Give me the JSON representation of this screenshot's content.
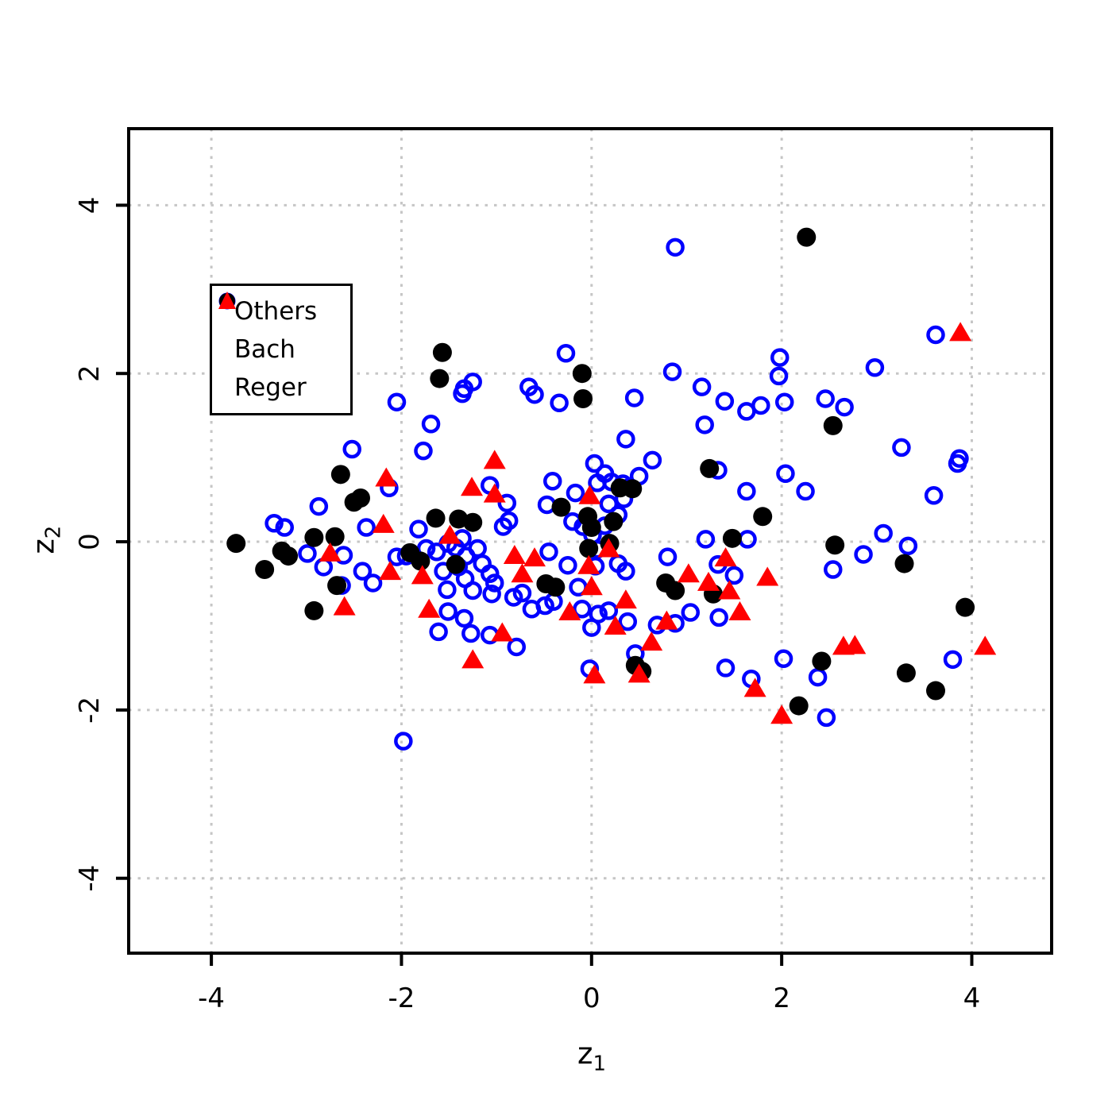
{
  "chart_data": {
    "type": "scatter",
    "title": "",
    "xlabel": "z1",
    "ylabel": "z2",
    "xlabel_base": "z",
    "xlabel_sub": "1",
    "ylabel_base": "z",
    "ylabel_sub": "2",
    "xlim": [
      -4.87,
      4.84
    ],
    "ylim": [
      -4.89,
      4.91
    ],
    "x_ticks": [
      "-4",
      "-2",
      "0",
      "2",
      "4"
    ],
    "y_ticks": [
      "-4",
      "-2",
      "0",
      "2",
      "4"
    ],
    "x_tick_values": [
      -4,
      -2,
      0,
      2,
      4
    ],
    "y_tick_values": [
      -4,
      -2,
      0,
      2,
      4
    ],
    "grid": true,
    "grid_color": "#c6c6c6",
    "legend": {
      "position": "top-left",
      "entries": [
        {
          "label": "Others",
          "marker": "open-circle",
          "color": "#0000ff"
        },
        {
          "label": "Bach",
          "marker": "filled-circle",
          "color": "#000000"
        },
        {
          "label": "Reger",
          "marker": "filled-triangle",
          "color": "#ff0000"
        }
      ]
    },
    "series": [
      {
        "name": "Others",
        "marker": "open-circle",
        "color": "#0000ff",
        "points": [
          [
            0.88,
            3.5
          ],
          [
            3.62,
            2.46
          ],
          [
            -0.27,
            2.24
          ],
          [
            2.98,
            2.07
          ],
          [
            1.98,
            2.19
          ],
          [
            1.97,
            1.97
          ],
          [
            0.85,
            2.02
          ],
          [
            -2.05,
            1.66
          ],
          [
            -1.34,
            1.82
          ],
          [
            -1.25,
            1.9
          ],
          [
            -1.36,
            1.76
          ],
          [
            -0.66,
            1.84
          ],
          [
            -0.6,
            1.75
          ],
          [
            -0.34,
            1.65
          ],
          [
            0.45,
            1.71
          ],
          [
            1.16,
            1.84
          ],
          [
            1.4,
            1.67
          ],
          [
            1.63,
            1.55
          ],
          [
            1.78,
            1.62
          ],
          [
            2.03,
            1.66
          ],
          [
            2.46,
            1.7
          ],
          [
            2.66,
            1.6
          ],
          [
            -1.69,
            1.4
          ],
          [
            -1.77,
            1.08
          ],
          [
            -2.52,
            1.1
          ],
          [
            1.19,
            1.39
          ],
          [
            3.26,
            1.12
          ],
          [
            3.87,
            0.99
          ],
          [
            0.64,
            0.97
          ],
          [
            0.36,
            1.22
          ],
          [
            0.03,
            0.93
          ],
          [
            0.14,
            0.81
          ],
          [
            1.33,
            0.85
          ],
          [
            1.63,
            0.6
          ],
          [
            2.04,
            0.81
          ],
          [
            2.25,
            0.6
          ],
          [
            3.6,
            0.55
          ],
          [
            3.85,
            0.93
          ],
          [
            0.06,
            0.7
          ],
          [
            0.21,
            0.71
          ],
          [
            0.33,
            0.69
          ],
          [
            0.4,
            0.65
          ],
          [
            0.5,
            0.78
          ],
          [
            -0.17,
            0.58
          ],
          [
            -0.41,
            0.72
          ],
          [
            -1.07,
            0.67
          ],
          [
            -0.89,
            0.46
          ],
          [
            -0.87,
            0.25
          ],
          [
            -0.93,
            0.18
          ],
          [
            -0.47,
            0.44
          ],
          [
            0.18,
            0.45
          ],
          [
            0.34,
            0.51
          ],
          [
            0.28,
            0.32
          ],
          [
            0.14,
            0.19
          ],
          [
            -0.2,
            0.24
          ],
          [
            -0.09,
            0.18
          ],
          [
            0.01,
            0.08
          ],
          [
            -2.13,
            0.64
          ],
          [
            -2.87,
            0.42
          ],
          [
            -3.34,
            0.22
          ],
          [
            -3.23,
            0.17
          ],
          [
            -2.37,
            0.17
          ],
          [
            -2.99,
            -0.14
          ],
          [
            -2.82,
            -0.3
          ],
          [
            -2.61,
            -0.16
          ],
          [
            -2.41,
            -0.35
          ],
          [
            -2.3,
            -0.49
          ],
          [
            -2.63,
            -0.52
          ],
          [
            -2.05,
            -0.18
          ],
          [
            -1.95,
            -0.17
          ],
          [
            -1.82,
            0.15
          ],
          [
            -1.74,
            -0.08
          ],
          [
            -1.63,
            -0.12
          ],
          [
            -1.51,
            -0.02
          ],
          [
            -1.43,
            -0.07
          ],
          [
            -1.36,
            0.04
          ],
          [
            -1.32,
            -0.17
          ],
          [
            -1.2,
            -0.08
          ],
          [
            -1.15,
            -0.26
          ],
          [
            -1.4,
            -0.3
          ],
          [
            -1.33,
            -0.44
          ],
          [
            -1.56,
            -0.35
          ],
          [
            -1.52,
            -0.57
          ],
          [
            -1.07,
            -0.38
          ],
          [
            -1.02,
            -0.49
          ],
          [
            -1.25,
            -0.58
          ],
          [
            -0.45,
            -0.12
          ],
          [
            -0.25,
            -0.28
          ],
          [
            -0.14,
            -0.54
          ],
          [
            0.28,
            -0.26
          ],
          [
            0.36,
            -0.35
          ],
          [
            0.04,
            -0.29
          ],
          [
            0.06,
            -0.09
          ],
          [
            0.8,
            -0.18
          ],
          [
            1.2,
            0.03
          ],
          [
            1.64,
            0.03
          ],
          [
            -0.82,
            -0.66
          ],
          [
            -0.63,
            -0.8
          ],
          [
            -0.49,
            -0.76
          ],
          [
            -0.4,
            -0.71
          ],
          [
            -0.73,
            -0.61
          ],
          [
            -1.05,
            -0.62
          ],
          [
            -1.51,
            -0.83
          ],
          [
            -1.34,
            -0.91
          ],
          [
            -1.61,
            -1.07
          ],
          [
            -1.27,
            -1.09
          ],
          [
            -1.07,
            -1.11
          ],
          [
            -0.79,
            -1.25
          ],
          [
            -0.1,
            -0.8
          ],
          [
            0.07,
            -0.86
          ],
          [
            0.0,
            -1.02
          ],
          [
            0.18,
            -0.82
          ],
          [
            0.38,
            -0.95
          ],
          [
            -0.02,
            -1.51
          ],
          [
            0.46,
            -1.33
          ],
          [
            0.69,
            -0.99
          ],
          [
            0.88,
            -0.97
          ],
          [
            1.04,
            -0.84
          ],
          [
            1.34,
            -0.9
          ],
          [
            1.33,
            -0.27
          ],
          [
            1.5,
            -0.4
          ],
          [
            1.41,
            -1.5
          ],
          [
            1.68,
            -1.63
          ],
          [
            2.02,
            -1.39
          ],
          [
            2.38,
            -1.61
          ],
          [
            2.47,
            -2.09
          ],
          [
            -1.98,
            -2.37
          ],
          [
            3.07,
            0.1
          ],
          [
            3.33,
            -0.05
          ],
          [
            2.86,
            -0.15
          ],
          [
            2.54,
            -0.33
          ],
          [
            3.8,
            -1.4
          ]
        ]
      },
      {
        "name": "Bach",
        "marker": "filled-circle",
        "color": "#000000",
        "points": [
          [
            2.26,
            3.62
          ],
          [
            -1.57,
            2.25
          ],
          [
            -1.6,
            1.94
          ],
          [
            -0.1,
            2.0
          ],
          [
            -0.09,
            1.7
          ],
          [
            2.54,
            1.38
          ],
          [
            1.24,
            0.87
          ],
          [
            -2.64,
            0.8
          ],
          [
            -2.5,
            0.47
          ],
          [
            -2.43,
            0.52
          ],
          [
            1.8,
            0.3
          ],
          [
            -3.74,
            -0.02
          ],
          [
            -2.92,
            0.05
          ],
          [
            -2.7,
            0.06
          ],
          [
            -3.26,
            -0.11
          ],
          [
            -3.19,
            -0.17
          ],
          [
            -3.44,
            -0.33
          ],
          [
            -2.68,
            -0.52
          ],
          [
            -2.92,
            -0.82
          ],
          [
            -1.91,
            -0.13
          ],
          [
            -1.8,
            -0.23
          ],
          [
            -1.64,
            0.28
          ],
          [
            -1.4,
            0.27
          ],
          [
            -1.25,
            0.23
          ],
          [
            -0.32,
            0.41
          ],
          [
            -0.04,
            0.3
          ],
          [
            0.0,
            0.17
          ],
          [
            0.23,
            0.24
          ],
          [
            -0.03,
            -0.08
          ],
          [
            0.19,
            -0.02
          ],
          [
            0.3,
            0.64
          ],
          [
            0.43,
            0.63
          ],
          [
            -1.43,
            -0.27
          ],
          [
            -0.48,
            -0.5
          ],
          [
            -0.38,
            -0.54
          ],
          [
            0.78,
            -0.49
          ],
          [
            0.88,
            -0.58
          ],
          [
            1.28,
            -0.62
          ],
          [
            0.46,
            -1.47
          ],
          [
            0.53,
            -1.54
          ],
          [
            1.48,
            0.04
          ],
          [
            2.56,
            -0.04
          ],
          [
            3.29,
            -0.26
          ],
          [
            3.93,
            -0.78
          ],
          [
            3.31,
            -1.56
          ],
          [
            3.62,
            -1.77
          ],
          [
            2.42,
            -1.42
          ],
          [
            2.18,
            -1.95
          ]
        ]
      },
      {
        "name": "Reger",
        "marker": "filled-triangle",
        "color": "#ff0000",
        "points": [
          [
            3.88,
            2.49
          ],
          [
            -2.16,
            0.76
          ],
          [
            -1.02,
            0.97
          ],
          [
            -2.19,
            0.21
          ],
          [
            -2.75,
            -0.13
          ],
          [
            -2.12,
            -0.35
          ],
          [
            -2.6,
            -0.77
          ],
          [
            -1.78,
            -0.4
          ],
          [
            -1.71,
            -0.8
          ],
          [
            -1.49,
            0.08
          ],
          [
            -1.26,
            0.65
          ],
          [
            -1.02,
            0.57
          ],
          [
            -0.02,
            0.55
          ],
          [
            -0.81,
            -0.16
          ],
          [
            -0.6,
            -0.19
          ],
          [
            -0.73,
            -0.38
          ],
          [
            -0.03,
            -0.28
          ],
          [
            0.0,
            -0.53
          ],
          [
            0.18,
            -0.08
          ],
          [
            0.36,
            -0.69
          ],
          [
            -0.23,
            -0.83
          ],
          [
            -0.94,
            -1.08
          ],
          [
            -1.25,
            -1.4
          ],
          [
            0.03,
            -1.58
          ],
          [
            0.5,
            -1.57
          ],
          [
            0.63,
            -1.19
          ],
          [
            0.79,
            -0.94
          ],
          [
            0.25,
            -1.0
          ],
          [
            1.02,
            -0.38
          ],
          [
            1.23,
            -0.48
          ],
          [
            1.41,
            -0.19
          ],
          [
            1.45,
            -0.58
          ],
          [
            1.56,
            -0.83
          ],
          [
            1.85,
            -0.42
          ],
          [
            1.72,
            -1.74
          ],
          [
            2.0,
            -2.06
          ],
          [
            2.65,
            -1.24
          ],
          [
            2.77,
            -1.23
          ],
          [
            4.14,
            -1.24
          ]
        ]
      }
    ]
  }
}
